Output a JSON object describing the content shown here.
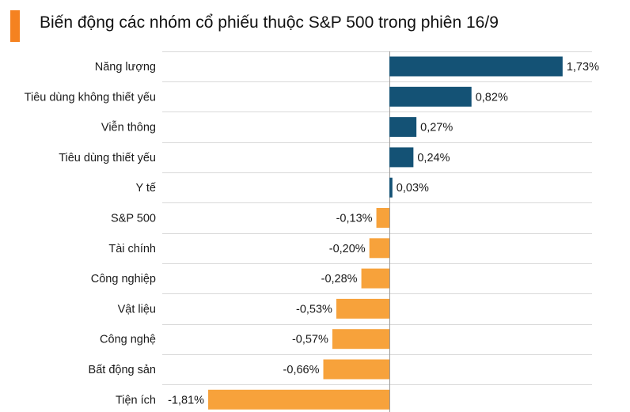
{
  "title": "Biến động các nhóm cổ phiếu thuộc S&P 500 trong phiên 16/9",
  "colors": {
    "accent": "#F58220",
    "positive": "#145275",
    "negative": "#F7A23B",
    "grid": "#d9d9d9"
  },
  "chart_data": {
    "type": "bar",
    "orientation": "horizontal",
    "title": "Biến động các nhóm cổ phiếu thuộc S&P 500 trong phiên 16/9",
    "categories": [
      "Năng lượng",
      "Tiêu dùng không thiết yếu",
      "Viễn thông",
      "Tiêu dùng thiết yếu",
      "Y tế",
      "S&P 500",
      "Tài chính",
      "Công nghiệp",
      "Vật liệu",
      "Công nghệ",
      "Bất động sản",
      "Tiện ích"
    ],
    "values": [
      1.73,
      0.82,
      0.27,
      0.24,
      0.03,
      -0.13,
      -0.2,
      -0.28,
      -0.53,
      -0.57,
      -0.66,
      -1.81
    ],
    "value_labels": [
      "1,73%",
      "0,82%",
      "0,27%",
      "0,24%",
      "0,03%",
      "-0,13%",
      "-0,20%",
      "-0,28%",
      "-0,53%",
      "-0,57%",
      "-0,66%",
      "-1,81%"
    ],
    "unit": "%",
    "xlim": [
      -1.81,
      1.73
    ],
    "grid": true
  }
}
